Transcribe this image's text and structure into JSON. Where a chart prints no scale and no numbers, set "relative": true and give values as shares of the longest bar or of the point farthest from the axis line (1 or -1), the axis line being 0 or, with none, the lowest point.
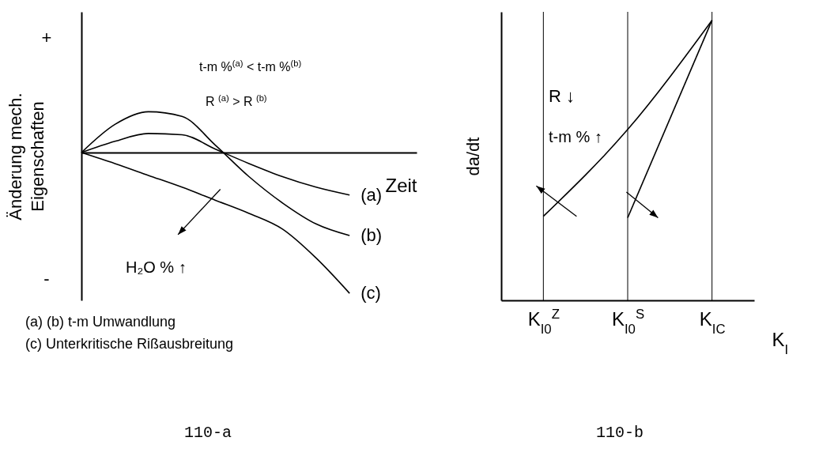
{
  "chart_data": [
    {
      "type": "line",
      "title": "110-a",
      "xlabel": "Zeit",
      "ylabel": "Änderung mech.\nEigenschaften",
      "relative": true,
      "categories": [
        null,
        null,
        null,
        null,
        null,
        null,
        null,
        null,
        null
      ],
      "series": [
        {
          "name": "(a)",
          "color": "#000000",
          "values": [
            0,
            0.08,
            0.136,
            0.127,
            0.024,
            -0.078,
            -0.171,
            -0.246,
            -0.302
          ]
        },
        {
          "name": "(b)",
          "color": "#000000",
          "values": [
            0,
            0.2,
            0.29,
            0.257,
            0.052,
            -0.171,
            -0.358,
            -0.507,
            -0.59
          ]
        },
        {
          "name": "(c)",
          "color": "#000000",
          "values": [
            0,
            -0.078,
            -0.162,
            -0.246,
            -0.339,
            -0.432,
            -0.544,
            -0.749,
            -1.0
          ]
        }
      ],
      "annotations": [
        "+",
        "-",
        "t-m %$^{(a)}$ < t-m %$^{(b)}$",
        "R $^{(a)}$ > R $^{(b)}$",
        "H₂O % ↑",
        "(a) (b) t-m Umwandlung",
        "(c) Unterkritische Rißausbreitung"
      ]
    },
    {
      "type": "line",
      "title": "110-b",
      "xlabel": "K$_{I}$",
      "ylabel": "da/dt",
      "relative": true,
      "categories": [
        "K$_{I0}$$^{Z}$",
        "K$_{I0}$$^{S}$",
        "K$_{IC}$"
      ],
      "series": [
        {
          "color": "#000000",
          "values": [
            0.3,
            0.61,
            1
          ]
        },
        {
          "color": "#000000",
          "values": [
            null,
            0.295,
            1
          ]
        }
      ],
      "ref_lines": [
        {
          "axis": "x",
          "value": "K$_{I0}$$^{Z}$"
        },
        {
          "axis": "x",
          "value": "K$_{I0}$$^{S}$"
        },
        {
          "axis": "x",
          "value": "K$_{IC}$"
        }
      ],
      "annotations": [
        "R ↓",
        "t-m % ↑"
      ]
    }
  ]
}
